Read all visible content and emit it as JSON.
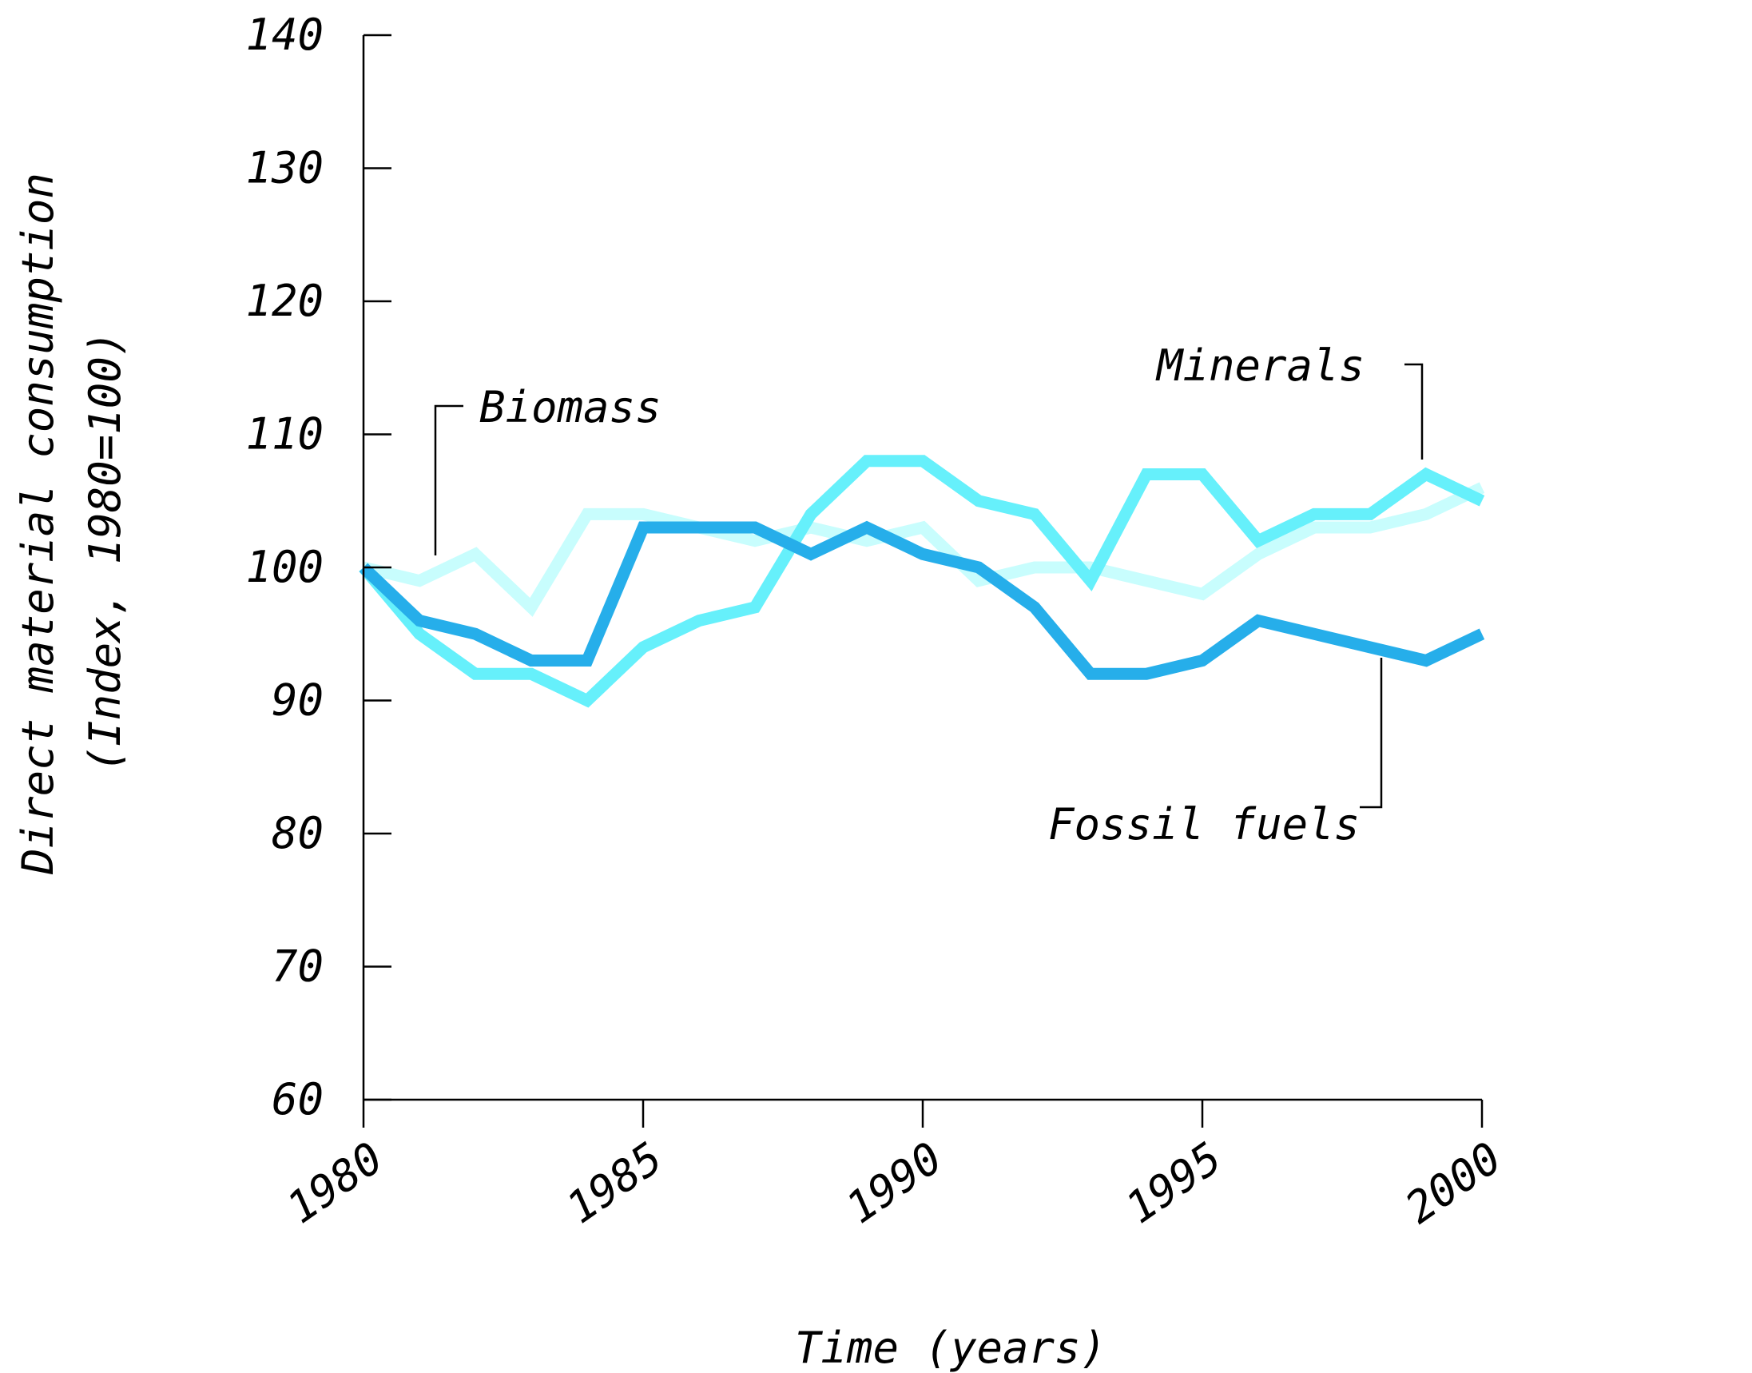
{
  "chart_data": {
    "type": "line",
    "title": "",
    "xlabel": "Time (years)",
    "ylabel_line1": "Direct material consumption",
    "ylabel_line2": "(Index, 1980=100)",
    "x": [
      1980,
      1981,
      1982,
      1983,
      1984,
      1985,
      1986,
      1987,
      1988,
      1989,
      1990,
      1991,
      1992,
      1993,
      1994,
      1995,
      1996,
      1997,
      1998,
      1999,
      2000
    ],
    "xlim": [
      1980,
      2000
    ],
    "ylim": [
      60,
      140
    ],
    "xticks": [
      "1980",
      "1985",
      "1990",
      "1995",
      "2000"
    ],
    "yticks": [
      "60",
      "70",
      "80",
      "90",
      "100",
      "110",
      "120",
      "130",
      "140"
    ],
    "grid": false,
    "legend": "none (direct labels)",
    "series": [
      {
        "name": "Biomass",
        "color": "#c8fdfd",
        "values": [
          100,
          99,
          101,
          97,
          104,
          104,
          103,
          102,
          103,
          102,
          103,
          99,
          100,
          100,
          99,
          98,
          101,
          103,
          103,
          104,
          106
        ]
      },
      {
        "name": "Minerals",
        "color": "#66f0fb",
        "values": [
          100,
          95,
          92,
          92,
          90,
          94,
          96,
          97,
          104,
          108,
          108,
          105,
          104,
          99,
          107,
          107,
          102,
          104,
          104,
          107,
          105
        ]
      },
      {
        "name": "Fossil fuels",
        "color": "#26aeea",
        "values": [
          100,
          96,
          95,
          93,
          93,
          103,
          103,
          103,
          101,
          103,
          101,
          100,
          97,
          92,
          92,
          93,
          96,
          95,
          94,
          93,
          95
        ]
      }
    ]
  }
}
